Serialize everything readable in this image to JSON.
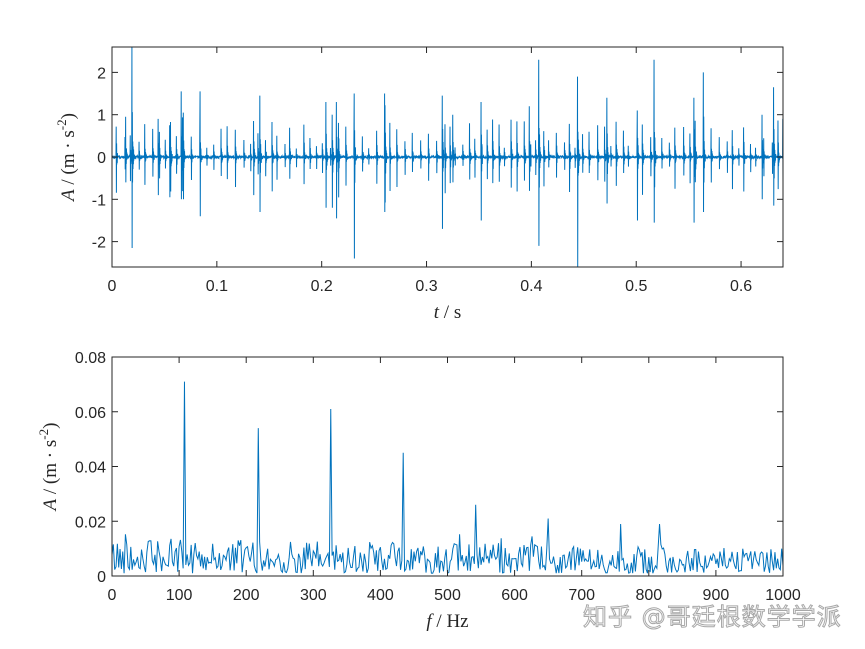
{
  "chart_data": [
    {
      "type": "line",
      "xlabel": {
        "var": "t",
        "unit": " / s"
      },
      "ylabel": {
        "var": "A",
        "unit": " / (m · s",
        "exp": "-2",
        "close": ")"
      },
      "xlim": [
        0,
        0.64
      ],
      "ylim": [
        -2.6,
        2.6
      ],
      "xticks": [
        0,
        0.1,
        0.2,
        0.3,
        0.4,
        0.5,
        0.6
      ],
      "xtick_labels": [
        "0",
        "0.1",
        "0.2",
        "0.3",
        "0.4",
        "0.5",
        "0.6"
      ],
      "yticks": [
        -2,
        -1,
        0,
        1,
        2
      ],
      "ytick_labels": [
        "-2",
        "-1",
        "0",
        "1",
        "2"
      ],
      "grid": false,
      "color": "#0072BD",
      "impulses": [
        {
          "t": 0.013,
          "max": 0.95,
          "min": -0.6
        },
        {
          "t": 0.019,
          "max": 2.6,
          "min": -2.15
        },
        {
          "t": 0.044,
          "max": 0.9,
          "min": -0.9
        },
        {
          "t": 0.055,
          "max": 0.75,
          "min": -0.95
        },
        {
          "t": 0.066,
          "max": 1.55,
          "min": -1.0
        },
        {
          "t": 0.068,
          "max": 1.05,
          "min": -1.0
        },
        {
          "t": 0.084,
          "max": 1.55,
          "min": -1.4
        },
        {
          "t": 0.135,
          "max": 0.85,
          "min": -0.9
        },
        {
          "t": 0.141,
          "max": 1.45,
          "min": -1.3
        },
        {
          "t": 0.204,
          "max": 1.3,
          "min": -1.2
        },
        {
          "t": 0.21,
          "max": 1.0,
          "min": -1.2
        },
        {
          "t": 0.214,
          "max": 1.3,
          "min": -1.45
        },
        {
          "t": 0.231,
          "max": 1.5,
          "min": -2.4
        },
        {
          "t": 0.26,
          "max": 1.5,
          "min": -1.3
        },
        {
          "t": 0.315,
          "max": 1.45,
          "min": -1.7
        },
        {
          "t": 0.325,
          "max": 1.0,
          "min": -0.6
        },
        {
          "t": 0.352,
          "max": 1.3,
          "min": -1.5
        },
        {
          "t": 0.398,
          "max": 1.2,
          "min": -0.8
        },
        {
          "t": 0.407,
          "max": 2.3,
          "min": -2.1
        },
        {
          "t": 0.444,
          "max": 1.9,
          "min": -2.6
        },
        {
          "t": 0.472,
          "max": 1.4,
          "min": -1.1
        },
        {
          "t": 0.501,
          "max": 1.1,
          "min": -1.5
        },
        {
          "t": 0.517,
          "max": 2.3,
          "min": -1.55
        },
        {
          "t": 0.555,
          "max": 1.4,
          "min": -1.55
        },
        {
          "t": 0.564,
          "max": 2.0,
          "min": -1.3
        },
        {
          "t": 0.62,
          "max": 1.0,
          "min": -1.0
        },
        {
          "t": 0.631,
          "max": 1.65,
          "min": -1.15
        },
        {
          "t": 0.64,
          "max": 0.9,
          "min": -0.6
        }
      ],
      "background_impulse_amplitude": [
        0.2,
        0.9
      ],
      "noise_amplitude": 0.03
    },
    {
      "type": "line",
      "xlabel": {
        "var": "f",
        "unit": " / Hz"
      },
      "ylabel": {
        "var": "A",
        "unit": " / (m · s",
        "exp": "-2",
        "close": ")"
      },
      "xlim": [
        0,
        1000
      ],
      "ylim": [
        0,
        0.08
      ],
      "xticks": [
        0,
        100,
        200,
        300,
        400,
        500,
        600,
        700,
        800,
        900,
        1000
      ],
      "xtick_labels": [
        "0",
        "100",
        "200",
        "300",
        "400",
        "500",
        "600",
        "700",
        "800",
        "900",
        "1000"
      ],
      "yticks": [
        0,
        0.02,
        0.04,
        0.06,
        0.08
      ],
      "ytick_labels": [
        "0",
        "0.02",
        "0.04",
        "0.06",
        "0.08"
      ],
      "grid": false,
      "color": "#0072BD",
      "peaks": [
        {
          "f": 108,
          "A": 0.071
        },
        {
          "f": 217,
          "A": 0.054
        },
        {
          "f": 325,
          "A": 0.061
        },
        {
          "f": 433,
          "A": 0.045
        },
        {
          "f": 541,
          "A": 0.026
        },
        {
          "f": 650,
          "A": 0.021
        },
        {
          "f": 758,
          "A": 0.019
        },
        {
          "f": 815,
          "A": 0.019
        }
      ],
      "noise_floor": [
        0.001,
        0.014
      ]
    }
  ],
  "watermark": "知乎 @哥廷根数学学派"
}
